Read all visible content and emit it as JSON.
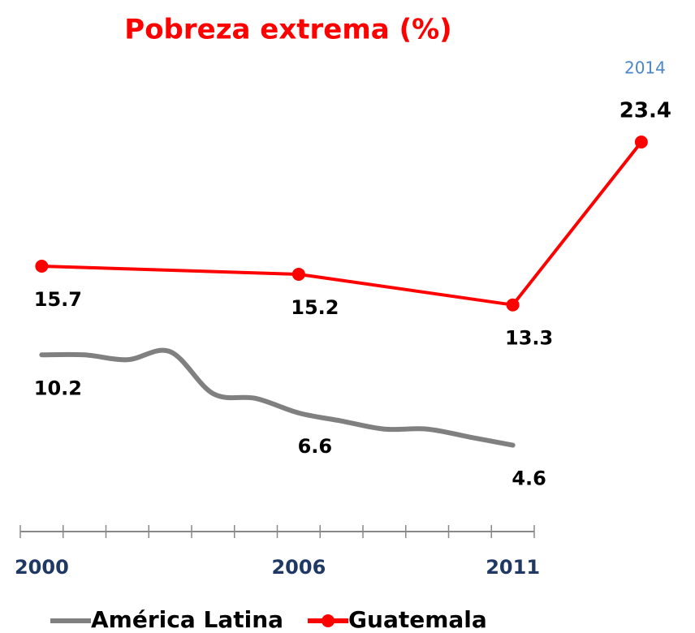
{
  "chart_data": {
    "type": "line",
    "title": "Pobreza extrema (%)",
    "xlim": [
      1999.5,
      2011.5
    ],
    "xticks": [
      2000,
      2006,
      2011
    ],
    "xminor_ticks": [
      1999.5,
      2000.5,
      2001.5,
      2002.5,
      2003.5,
      2004.5,
      2005.5,
      2006.5,
      2007.5,
      2008.5,
      2009.5,
      2010.5,
      2011.5
    ],
    "series": [
      {
        "name": "América Latina",
        "color": "#808080",
        "x": [
          2000,
          2001,
          2002,
          2003,
          2004,
          2005,
          2006,
          2007,
          2008,
          2009,
          2010,
          2011
        ],
        "values": [
          10.2,
          10.2,
          9.9,
          10.4,
          7.8,
          7.5,
          6.6,
          6.1,
          5.6,
          5.6,
          5.1,
          4.6
        ],
        "value_labels": [
          "10.2",
          null,
          null,
          null,
          null,
          null,
          "6.6",
          null,
          null,
          null,
          null,
          "4.6"
        ]
      },
      {
        "name": "Guatemala",
        "color": "#ff0000",
        "x": [
          2000,
          2006,
          2011,
          2014
        ],
        "values": [
          15.7,
          15.2,
          13.3,
          23.4
        ],
        "value_labels": [
          "15.7",
          "15.2",
          "13.3",
          "23.4"
        ]
      }
    ]
  }
}
